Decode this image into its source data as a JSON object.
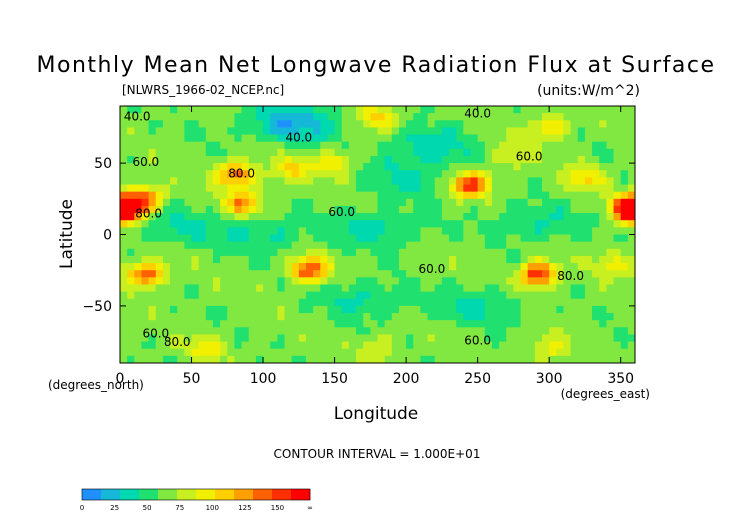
{
  "chart_data": {
    "type": "heatmap",
    "title": "Monthly Mean Net Longwave Radiation Flux at Surface",
    "subtitle_left": "[NLWRS_1966-02_NCEP.nc]",
    "subtitle_right": "(units:W/m^2)",
    "xlabel": "Longitude",
    "ylabel": "Latitude",
    "x_unit_label": "(degrees_east)",
    "y_unit_label": "(degrees_north)",
    "xlim": [
      0,
      360
    ],
    "ylim": [
      -90,
      90
    ],
    "x_ticks": [
      0,
      50,
      100,
      150,
      200,
      250,
      300,
      350
    ],
    "y_ticks": [
      50,
      0,
      -50
    ],
    "x_tick_labels": [
      "0",
      "50",
      "100",
      "150",
      "200",
      "250",
      "300",
      "350"
    ],
    "y_tick_labels": [
      "50",
      "0",
      "−50"
    ],
    "contour_interval_text": "CONTOUR INTERVAL = 1.000E+01",
    "contour_labels": [
      {
        "text": "40.0",
        "lon": 12,
        "lat": 80
      },
      {
        "text": "40.0",
        "lon": 125,
        "lat": 65
      },
      {
        "text": "40.0",
        "lon": 250,
        "lat": 82
      },
      {
        "text": "60.0",
        "lon": 18,
        "lat": 48
      },
      {
        "text": "60.0",
        "lon": 155,
        "lat": 13
      },
      {
        "text": "60.0",
        "lon": 286,
        "lat": 52
      },
      {
        "text": "60.0",
        "lon": 218,
        "lat": -27
      },
      {
        "text": "60.0",
        "lon": 25,
        "lat": -72
      },
      {
        "text": "60.0",
        "lon": 250,
        "lat": -77
      },
      {
        "text": "80.0",
        "lon": 20,
        "lat": 12
      },
      {
        "text": "80.0",
        "lon": 40,
        "lat": -78
      },
      {
        "text": "80.0",
        "lon": 85,
        "lat": 40
      },
      {
        "text": "80.0",
        "lon": 315,
        "lat": -32
      }
    ],
    "colorbar": {
      "colors": [
        "#1e90ff",
        "#16b8d8",
        "#00d8b0",
        "#20e070",
        "#80e840",
        "#c8f020",
        "#f0f000",
        "#ffd000",
        "#ffa000",
        "#ff6000",
        "#ff3000",
        "#ff0000"
      ],
      "tick_labels": [
        "0",
        "25",
        "50",
        "75",
        "100",
        "125",
        "150",
        "∞"
      ]
    },
    "background_level": 55,
    "hotspots": [
      {
        "lon": 3,
        "lat": 18,
        "value": 150
      },
      {
        "lon": 358,
        "lat": 18,
        "value": 150
      },
      {
        "lon": 18,
        "lat": 25,
        "value": 115
      },
      {
        "lon": 85,
        "lat": 22,
        "value": 110
      },
      {
        "lon": 82,
        "lat": 42,
        "value": 120
      },
      {
        "lon": 120,
        "lat": 45,
        "value": 90
      },
      {
        "lon": 150,
        "lat": 50,
        "value": 90
      },
      {
        "lon": 245,
        "lat": 35,
        "value": 130
      },
      {
        "lon": 325,
        "lat": 40,
        "value": 90
      },
      {
        "lon": 275,
        "lat": 55,
        "value": 80
      },
      {
        "lon": 18,
        "lat": -28,
        "value": 125
      },
      {
        "lon": 132,
        "lat": -25,
        "value": 130
      },
      {
        "lon": 292,
        "lat": -28,
        "value": 140
      },
      {
        "lon": 345,
        "lat": -20,
        "value": 80
      },
      {
        "lon": 180,
        "lat": -80,
        "value": 78
      },
      {
        "lon": 60,
        "lat": -80,
        "value": 85
      },
      {
        "lon": 300,
        "lat": -80,
        "value": 80
      },
      {
        "lon": 180,
        "lat": 82,
        "value": 90
      },
      {
        "lon": 300,
        "lat": 75,
        "value": 90
      }
    ],
    "coldspots": [
      {
        "lon": 180,
        "lat": 5,
        "value": 30
      },
      {
        "lon": 100,
        "lat": 0,
        "value": 35
      },
      {
        "lon": 290,
        "lat": 8,
        "value": 35
      },
      {
        "lon": 200,
        "lat": 40,
        "value": 35
      },
      {
        "lon": 170,
        "lat": -45,
        "value": 35
      },
      {
        "lon": 40,
        "lat": 5,
        "value": 35
      },
      {
        "lon": 250,
        "lat": -50,
        "value": 35
      },
      {
        "lon": 120,
        "lat": 78,
        "value": 15
      },
      {
        "lon": 215,
        "lat": 62,
        "value": 30
      }
    ]
  }
}
